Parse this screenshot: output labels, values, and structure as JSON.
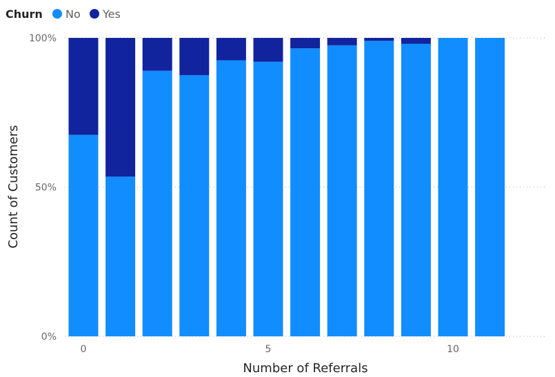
{
  "chart_data": {
    "type": "bar",
    "stacked": "percent",
    "legend": {
      "title": "Churn",
      "position": "top-left",
      "entries": [
        {
          "name": "No",
          "color": "#118dff"
        },
        {
          "name": "Yes",
          "color": "#12239e"
        }
      ]
    },
    "xlabel": "Number of Referrals",
    "ylabel": "Count of Customers",
    "x": [
      0,
      1,
      2,
      3,
      4,
      5,
      6,
      7,
      8,
      9,
      10,
      11
    ],
    "x_ticks": [
      "0",
      "5",
      "10"
    ],
    "x_tick_values": [
      0,
      5,
      10
    ],
    "y_ticks": [
      "0%",
      "50%",
      "100%"
    ],
    "y_tick_values": [
      0,
      50,
      100
    ],
    "ylim": [
      0,
      100
    ],
    "grid": true,
    "series": [
      {
        "name": "No",
        "color": "#118dff",
        "values": [
          67.5,
          53.5,
          89,
          87.5,
          92.5,
          92,
          96.5,
          97.5,
          99,
          98,
          100,
          100
        ]
      },
      {
        "name": "Yes",
        "color": "#12239e",
        "values": [
          32.5,
          46.5,
          11,
          12.5,
          7.5,
          8,
          3.5,
          2.5,
          1,
          2,
          0,
          0
        ]
      }
    ]
  }
}
